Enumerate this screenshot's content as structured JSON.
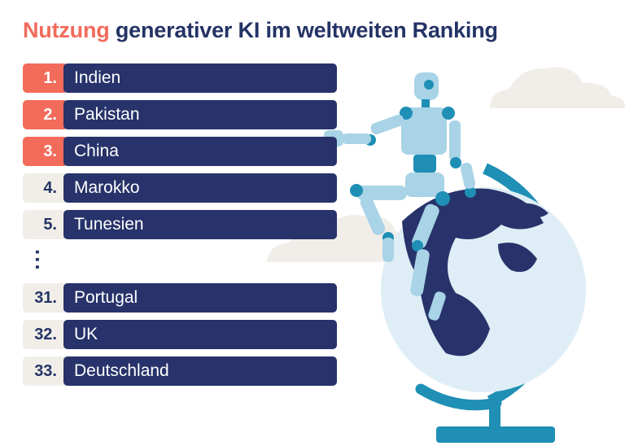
{
  "header": {
    "title_accent": "Nutzung",
    "title_rest": " generativer KI im weltweiten Ranking"
  },
  "ranking": {
    "rows": [
      {
        "rank": "1.",
        "country": "Indien",
        "highlight": true
      },
      {
        "rank": "2.",
        "country": "Pakistan",
        "highlight": true
      },
      {
        "rank": "3.",
        "country": "China",
        "highlight": true
      },
      {
        "rank": "4.",
        "country": "Marokko",
        "highlight": false
      },
      {
        "rank": "5.",
        "country": "Tunesien",
        "highlight": false
      },
      {
        "rank": "31.",
        "country": "Portugal",
        "highlight": false
      },
      {
        "rank": "32.",
        "country": "UK",
        "highlight": false
      },
      {
        "rank": "33.",
        "country": "Deutschland",
        "highlight": false
      }
    ],
    "ellipsis": "..."
  },
  "colors": {
    "accent": "#f26b5b",
    "navy": "#27336a",
    "rank_bg": "#f1eee9",
    "globe_blue": "#1f8fb5",
    "robot": "#a9d3e6"
  },
  "illustration": {
    "icons": [
      "robot-icon",
      "globe-icon",
      "cloud-icon"
    ]
  }
}
